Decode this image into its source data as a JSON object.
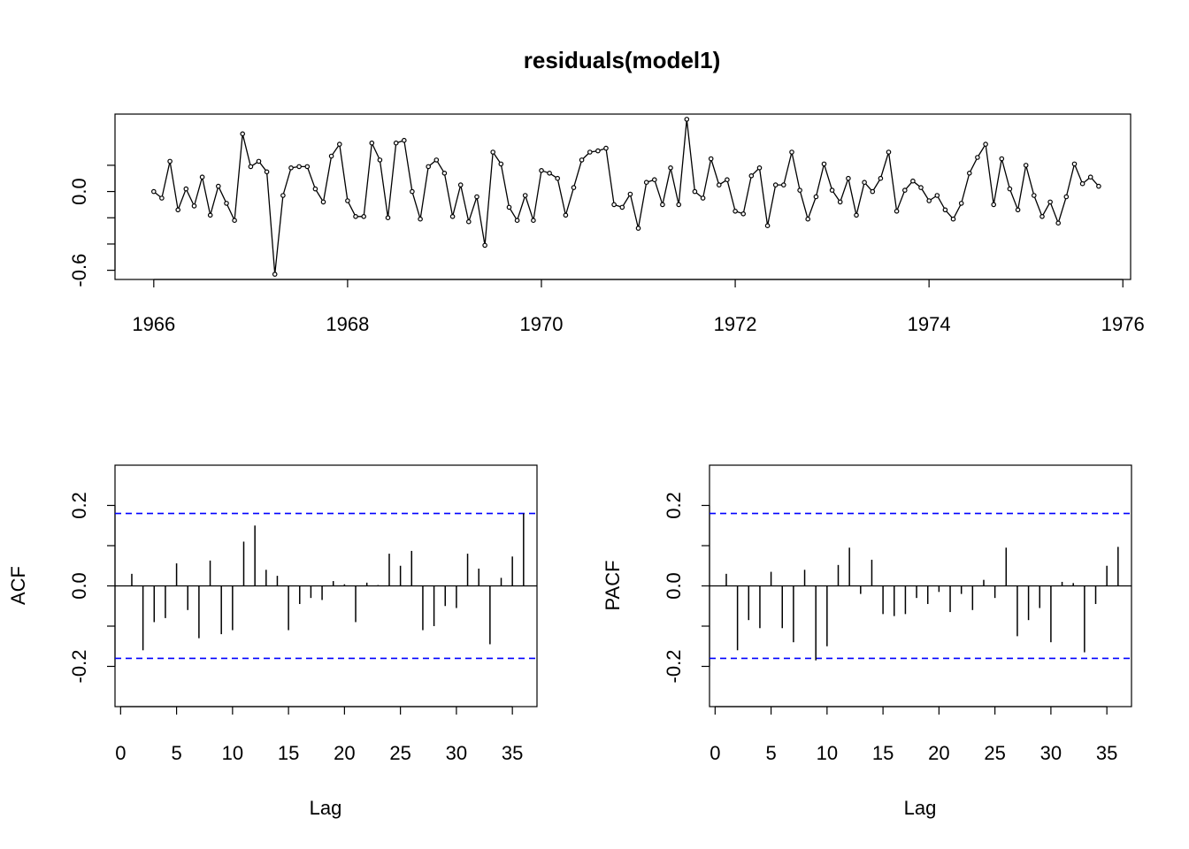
{
  "chart_data": [
    {
      "type": "line",
      "title": "residuals(model1)",
      "xlabel": "",
      "ylabel": "",
      "xlim": [
        1965.6,
        1976.08
      ],
      "ylim": [
        -0.67,
        0.59
      ],
      "x_ticks": [
        "1966",
        "1968",
        "1970",
        "1972",
        "1974",
        "1976"
      ],
      "y_ticks": [
        "-0.6",
        "0.0"
      ],
      "x_start": 1966,
      "frequency": 12,
      "marker": "point",
      "values": [
        0.0,
        -0.05,
        0.23,
        -0.14,
        0.02,
        -0.11,
        0.11,
        -0.18,
        0.04,
        -0.09,
        -0.22,
        0.44,
        0.19,
        0.23,
        0.15,
        -0.63,
        -0.03,
        0.18,
        0.19,
        0.19,
        0.02,
        -0.08,
        0.27,
        0.36,
        -0.07,
        -0.19,
        -0.19,
        0.37,
        0.24,
        -0.2,
        0.37,
        0.39,
        0.0,
        -0.21,
        0.19,
        0.24,
        0.14,
        -0.19,
        0.05,
        -0.23,
        -0.04,
        -0.41,
        0.3,
        0.21,
        -0.12,
        -0.22,
        -0.03,
        -0.22,
        0.16,
        0.14,
        0.1,
        -0.18,
        0.03,
        0.24,
        0.3,
        0.31,
        0.33,
        -0.1,
        -0.12,
        -0.02,
        -0.28,
        0.07,
        0.09,
        -0.1,
        0.18,
        -0.1,
        0.55,
        0.0,
        -0.05,
        0.25,
        0.05,
        0.09,
        -0.15,
        -0.17,
        0.12,
        0.18,
        -0.26,
        0.05,
        0.05,
        0.3,
        0.01,
        -0.21,
        -0.04,
        0.21,
        0.01,
        -0.08,
        0.1,
        -0.18,
        0.07,
        0.0,
        0.1,
        0.3,
        -0.15,
        0.01,
        0.08,
        0.03,
        -0.07,
        -0.03,
        -0.14,
        -0.21,
        -0.09,
        0.14,
        0.26,
        0.36,
        -0.1,
        0.25,
        0.02,
        -0.14,
        0.2,
        -0.03,
        -0.19,
        -0.08,
        -0.24,
        -0.04,
        0.21,
        0.06,
        0.11,
        0.04
      ]
    },
    {
      "type": "bar",
      "title": "",
      "xlabel": "Lag",
      "ylabel": "ACF",
      "xlim": [
        -0.5,
        37.2
      ],
      "ylim": [
        -0.3,
        0.3
      ],
      "x_ticks": [
        "0",
        "5",
        "10",
        "15",
        "20",
        "25",
        "30",
        "35"
      ],
      "y_ticks": [
        "-0.2",
        "0.0",
        "0.2"
      ],
      "confidence_bound": 0.18,
      "lags": [
        1,
        2,
        3,
        4,
        5,
        6,
        7,
        8,
        9,
        10,
        11,
        12,
        13,
        14,
        15,
        16,
        17,
        18,
        19,
        20,
        21,
        22,
        23,
        24,
        25,
        26,
        27,
        28,
        29,
        30,
        31,
        32,
        33,
        34,
        35,
        36
      ],
      "values": [
        0.03,
        -0.16,
        -0.09,
        -0.08,
        0.056,
        -0.06,
        -0.13,
        0.063,
        -0.12,
        -0.11,
        0.11,
        0.15,
        0.04,
        0.025,
        -0.11,
        -0.045,
        -0.03,
        -0.035,
        0.012,
        0.004,
        -0.09,
        0.008,
        0.002,
        0.08,
        0.05,
        0.087,
        -0.11,
        -0.1,
        -0.05,
        -0.055,
        0.08,
        0.043,
        -0.145,
        0.02,
        0.073,
        0.18
      ]
    },
    {
      "type": "bar",
      "title": "",
      "xlabel": "Lag",
      "ylabel": "PACF",
      "xlim": [
        -0.5,
        37.2
      ],
      "ylim": [
        -0.3,
        0.3
      ],
      "x_ticks": [
        "0",
        "5",
        "10",
        "15",
        "20",
        "25",
        "30",
        "35"
      ],
      "y_ticks": [
        "-0.2",
        "0.0",
        "0.2"
      ],
      "confidence_bound": 0.18,
      "lags": [
        1,
        2,
        3,
        4,
        5,
        6,
        7,
        8,
        9,
        10,
        11,
        12,
        13,
        14,
        15,
        16,
        17,
        18,
        19,
        20,
        21,
        22,
        23,
        24,
        25,
        26,
        27,
        28,
        29,
        30,
        31,
        32,
        33,
        34,
        35,
        36
      ],
      "values": [
        0.03,
        -0.16,
        -0.085,
        -0.105,
        0.035,
        -0.105,
        -0.14,
        0.04,
        -0.185,
        -0.15,
        0.052,
        0.095,
        -0.02,
        0.065,
        -0.07,
        -0.075,
        -0.07,
        -0.03,
        -0.045,
        -0.015,
        -0.065,
        -0.02,
        -0.06,
        0.015,
        -0.03,
        0.095,
        -0.125,
        -0.085,
        -0.055,
        -0.14,
        0.01,
        0.007,
        -0.165,
        -0.045,
        0.05,
        0.097
      ]
    }
  ],
  "colors": {
    "line": "#000000",
    "confidence": "#0000ff",
    "axis": "#000000"
  }
}
